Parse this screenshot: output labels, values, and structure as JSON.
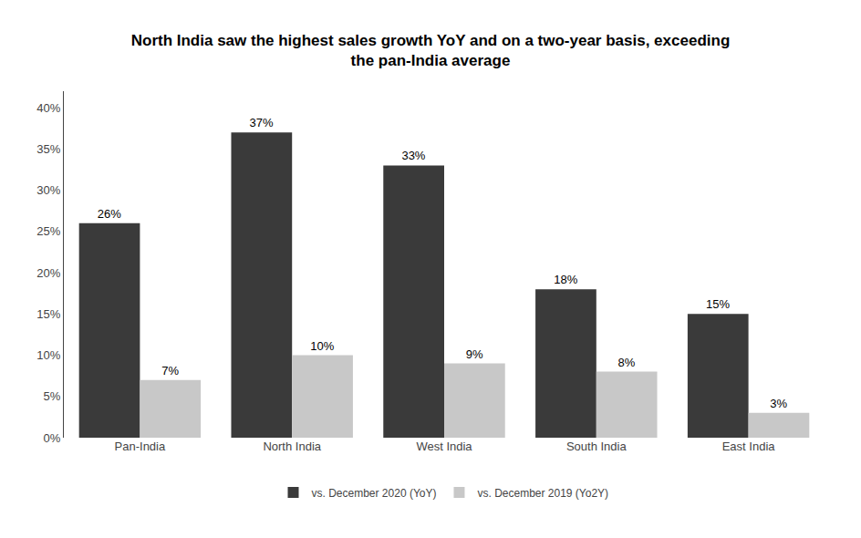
{
  "chart_data": {
    "type": "bar",
    "title": "North India saw the highest sales growth YoY and on a two-year basis, exceeding\nthe pan-India average",
    "categories": [
      "Pan-India",
      "North India",
      "West India",
      "South India",
      "East India"
    ],
    "series": [
      {
        "name": "vs. December 2020 (YoY)",
        "color": "#3a3a3a",
        "values": [
          26,
          37,
          33,
          18,
          15
        ],
        "value_labels": [
          "26%",
          "37%",
          "33%",
          "18%",
          "15%"
        ]
      },
      {
        "name": "vs. December 2019 (Yo2Y)",
        "color": "#c8c8c8",
        "values": [
          7,
          10,
          9,
          8,
          3
        ],
        "value_labels": [
          "7%",
          "10%",
          "9%",
          "8%",
          "3%"
        ]
      }
    ],
    "ylim": [
      0,
      42
    ],
    "yticks": [
      {
        "value": 0,
        "label": "0%"
      },
      {
        "value": 5,
        "label": "5%"
      },
      {
        "value": 10,
        "label": "10%"
      },
      {
        "value": 15,
        "label": "15%"
      },
      {
        "value": 20,
        "label": "20%"
      },
      {
        "value": 25,
        "label": "25%"
      },
      {
        "value": 30,
        "label": "30%"
      },
      {
        "value": 35,
        "label": "35%"
      },
      {
        "value": 40,
        "label": "40%"
      }
    ],
    "data_labels": true,
    "grid": false,
    "legend": "bottom"
  }
}
